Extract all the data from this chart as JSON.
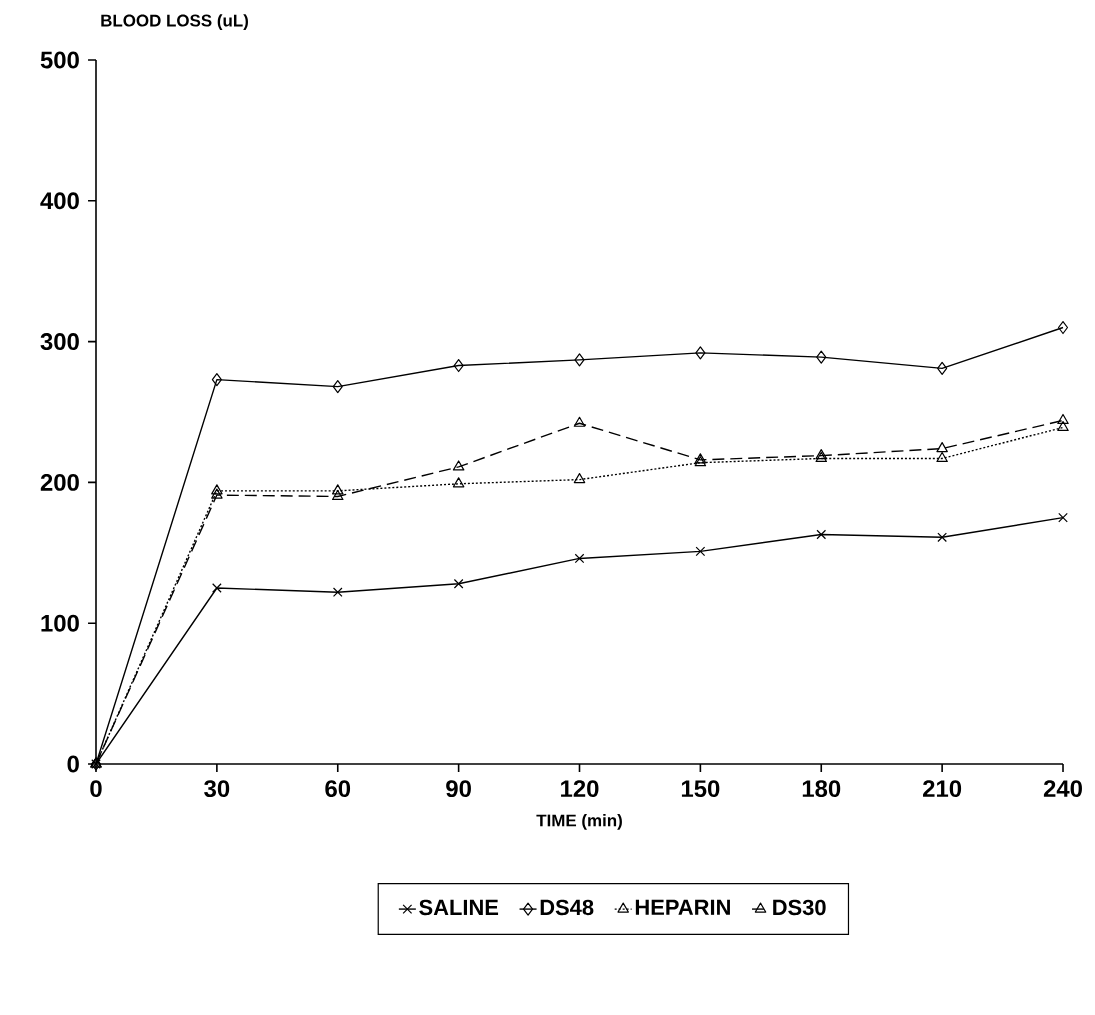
{
  "chart_data": {
    "type": "line",
    "xlabel": "TIME (min)",
    "ylabel": "BLOOD LOSS (uL)",
    "x": [
      0,
      30,
      60,
      90,
      120,
      150,
      180,
      210,
      240
    ],
    "series": [
      {
        "name": "SALINE",
        "color": "#000000",
        "marker": "cross",
        "line_style": "solid",
        "values": [
          0,
          125,
          122,
          128,
          146,
          151,
          163,
          161,
          175
        ]
      },
      {
        "name": "DS48",
        "color": "#000000",
        "marker": "diamond",
        "line_style": "solid",
        "values": [
          0,
          273,
          268,
          283,
          287,
          292,
          289,
          281,
          310
        ]
      },
      {
        "name": "HEPARIN",
        "color": "#000000",
        "marker": "triangle",
        "line_style": "dotted",
        "values": [
          0,
          194,
          194,
          199,
          202,
          214,
          217,
          217,
          239
        ]
      },
      {
        "name": "DS30",
        "color": "#000000",
        "marker": "triangle",
        "line_style": "dashed",
        "values": [
          0,
          191,
          190,
          211,
          242,
          216,
          219,
          224,
          244
        ]
      }
    ],
    "xlim": [
      0,
      240
    ],
    "xticks": [
      0,
      30,
      60,
      90,
      120,
      150,
      180,
      210,
      240
    ],
    "ylim": [
      0,
      500
    ],
    "yticks": [
      0,
      100,
      200,
      300,
      400,
      500
    ],
    "grid": false,
    "legend": "bottom"
  }
}
